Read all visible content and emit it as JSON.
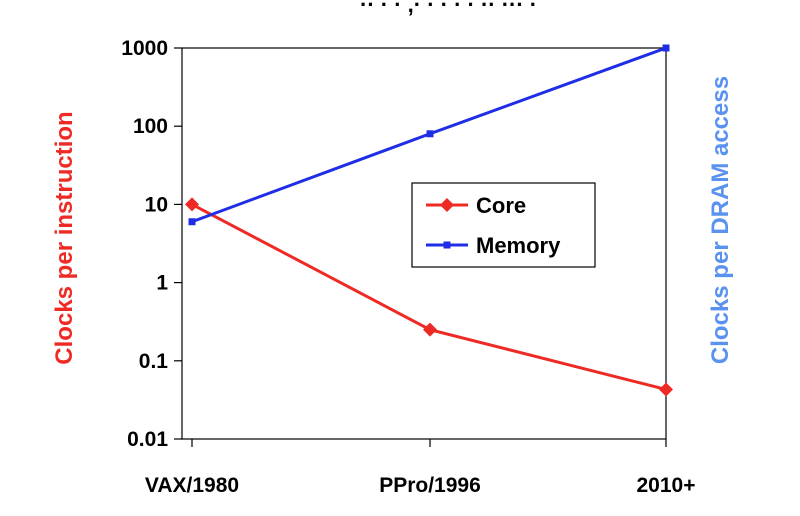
{
  "header": {
    "cropped_text": "·· · · ,· · · · · ·· ··· ·"
  },
  "chart_data": {
    "type": "line",
    "scale": "log",
    "categories": [
      "VAX/1980",
      "PPro/1996",
      "2010+"
    ],
    "series": [
      {
        "name": "Core",
        "values": [
          10,
          0.25,
          0.043
        ],
        "color": "#ee2a24",
        "marker": "diamond"
      },
      {
        "name": "Memory",
        "values": [
          6,
          80,
          1000
        ],
        "color": "#1f2ee6",
        "marker": "square"
      }
    ],
    "yticks": [
      "1000",
      "100",
      "10",
      "1",
      "0.1",
      "0.01"
    ],
    "ytick_values": [
      1000,
      100,
      10,
      1,
      0.1,
      0.01
    ],
    "ylim": [
      0.01,
      1000
    ],
    "ylabel": "Clocks per instruction",
    "ylabel_color": "#ee2a24",
    "y2label": "Clocks per DRAM access",
    "y2label_color": "#5a92f0",
    "legend": "center-right",
    "grid": false
  }
}
